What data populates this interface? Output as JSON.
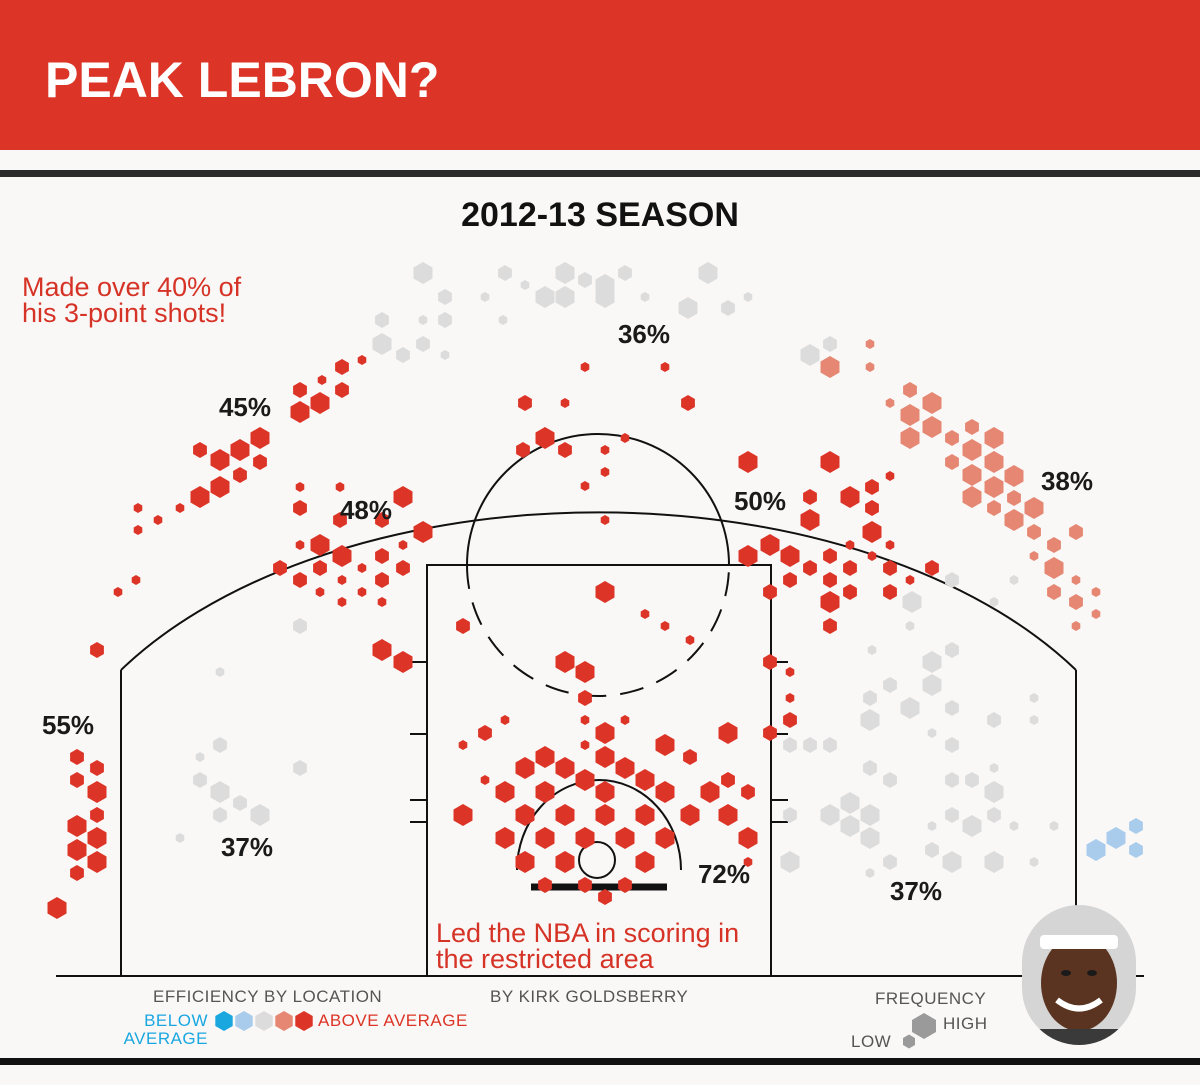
{
  "header": {
    "title": "PEAK LEBRON?"
  },
  "chart_data": {
    "type": "heatmap",
    "title": "2012-13 SEASON",
    "description_kind": "hexagonal shot chart",
    "colors": {
      "above_average": "#dc3426",
      "slightly_above": "#e58773",
      "average": "#dcdcdc",
      "slightly_below": "#a9ccec",
      "below_average": "#1aa7e0"
    },
    "zone_labels": [
      {
        "label": "36%"
      },
      {
        "label": "45%"
      },
      {
        "label": "48%"
      },
      {
        "label": "50%"
      },
      {
        "label": "38%"
      },
      {
        "label": "55%"
      },
      {
        "label": "37%"
      },
      {
        "label": "72%"
      },
      {
        "label": "37%"
      }
    ]
  },
  "annotations": {
    "three_point": "Made over 40% of\nhis 3-point shots!",
    "restricted": "Led the NBA in scoring in\nthe restricted area"
  },
  "legend": {
    "efficiency_title": "EFFICIENCY BY LOCATION",
    "below": "BELOW\nAVERAGE",
    "above": "ABOVE\nAVERAGE",
    "frequency_title": "FREQUENCY",
    "low": "LOW",
    "high": "HIGH",
    "scale_colors": [
      "#1aa7e0",
      "#a9ccec",
      "#dcdcdc",
      "#e58773",
      "#dc3426"
    ]
  },
  "credit": "BY KIRK GOLDSBERRY"
}
